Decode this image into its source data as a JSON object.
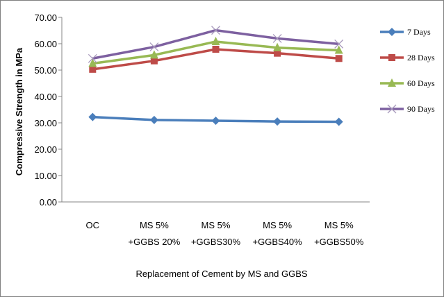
{
  "chart_data": {
    "type": "line",
    "title": "",
    "xlabel": "Replacement of Cement by MS and GGBS",
    "ylabel": "Compressive Strength in MPa",
    "ylim": [
      0,
      70
    ],
    "yticks": [
      "0.00",
      "10.00",
      "20.00",
      "30.00",
      "40.00",
      "50.00",
      "60.00",
      "70.00"
    ],
    "categories": [
      [
        "OC"
      ],
      [
        "MS 5%",
        "+GGBS 20%"
      ],
      [
        "MS 5%",
        "+GGBS30%"
      ],
      [
        "MS 5%",
        "+GGBS40%"
      ],
      [
        "MS 5%",
        "+GGBS50%"
      ]
    ],
    "grid": false,
    "legend_position": "right",
    "series": [
      {
        "name": "7 Days",
        "color": "#4a7ebb",
        "marker": "diamond",
        "values": [
          32.2,
          31.1,
          30.8,
          30.5,
          30.4
        ]
      },
      {
        "name": "28 Days",
        "color": "#be4b48",
        "marker": "square",
        "values": [
          50.3,
          53.5,
          57.9,
          56.4,
          54.4
        ]
      },
      {
        "name": "60 Days",
        "color": "#98b954",
        "marker": "triangle",
        "values": [
          52.5,
          55.7,
          60.8,
          58.5,
          57.5
        ]
      },
      {
        "name": "90 Days",
        "color": "#7d60a0",
        "marker": "x",
        "values": [
          54.4,
          58.8,
          65.1,
          62.0,
          59.9
        ]
      }
    ]
  }
}
